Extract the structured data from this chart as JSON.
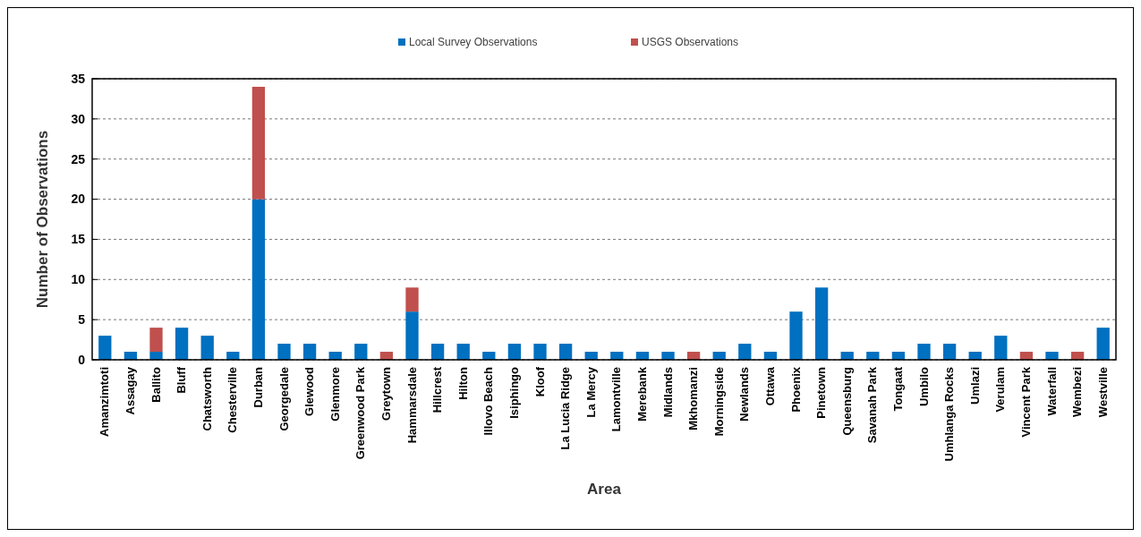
{
  "chart_data": {
    "type": "bar",
    "stacked": true,
    "xlabel": "Area",
    "ylabel": "Number of Observations",
    "categories": [
      "Amanzimtoti",
      "Assagay",
      "Ballito",
      "Bluff",
      "Chatsworth",
      "Chesterville",
      "Durban",
      "Georgedale",
      "Glewood",
      "Glenmore",
      "Greenwood Park",
      "Greytown",
      "Hammarsdale",
      "Hillcrest",
      "Hilton",
      "Illovo Beach",
      "Isiphingo",
      "Kloof",
      "La Lucia Ridge",
      "La Mercy",
      "Lamontville",
      "Merebank",
      "Midlands",
      "Mkhomanzi",
      "Morningside",
      "Newlands",
      "Ottawa",
      "Phoenix",
      "Pinetown",
      "Queensburg",
      "Savanah Park",
      "Tongaat",
      "Umbilo",
      "Umhlanga Rocks",
      "Umlazi",
      "Verulam",
      "Vincent Park",
      "Waterfall",
      "Wembezi",
      "Westville"
    ],
    "series": [
      {
        "name": "Local Survey Observations",
        "color": "#0070c0",
        "values": [
          3,
          1,
          1,
          4,
          3,
          1,
          20,
          2,
          2,
          1,
          2,
          0,
          6,
          2,
          2,
          1,
          2,
          2,
          2,
          1,
          1,
          1,
          1,
          0,
          1,
          2,
          1,
          6,
          9,
          1,
          1,
          1,
          2,
          2,
          1,
          3,
          0,
          1,
          0,
          4
        ]
      },
      {
        "name": "USGS Observations",
        "color": "#c0504d",
        "values": [
          0,
          0,
          3,
          0,
          0,
          0,
          14,
          0,
          0,
          0,
          0,
          1,
          3,
          0,
          0,
          0,
          0,
          0,
          0,
          0,
          0,
          0,
          0,
          1,
          0,
          0,
          0,
          0,
          0,
          0,
          0,
          0,
          0,
          0,
          0,
          0,
          1,
          0,
          1,
          0
        ]
      }
    ],
    "ylim": [
      0,
      35
    ],
    "yticks": [
      0,
      5,
      10,
      15,
      20,
      25,
      30,
      35
    ],
    "grid": "y",
    "legend": "top"
  }
}
